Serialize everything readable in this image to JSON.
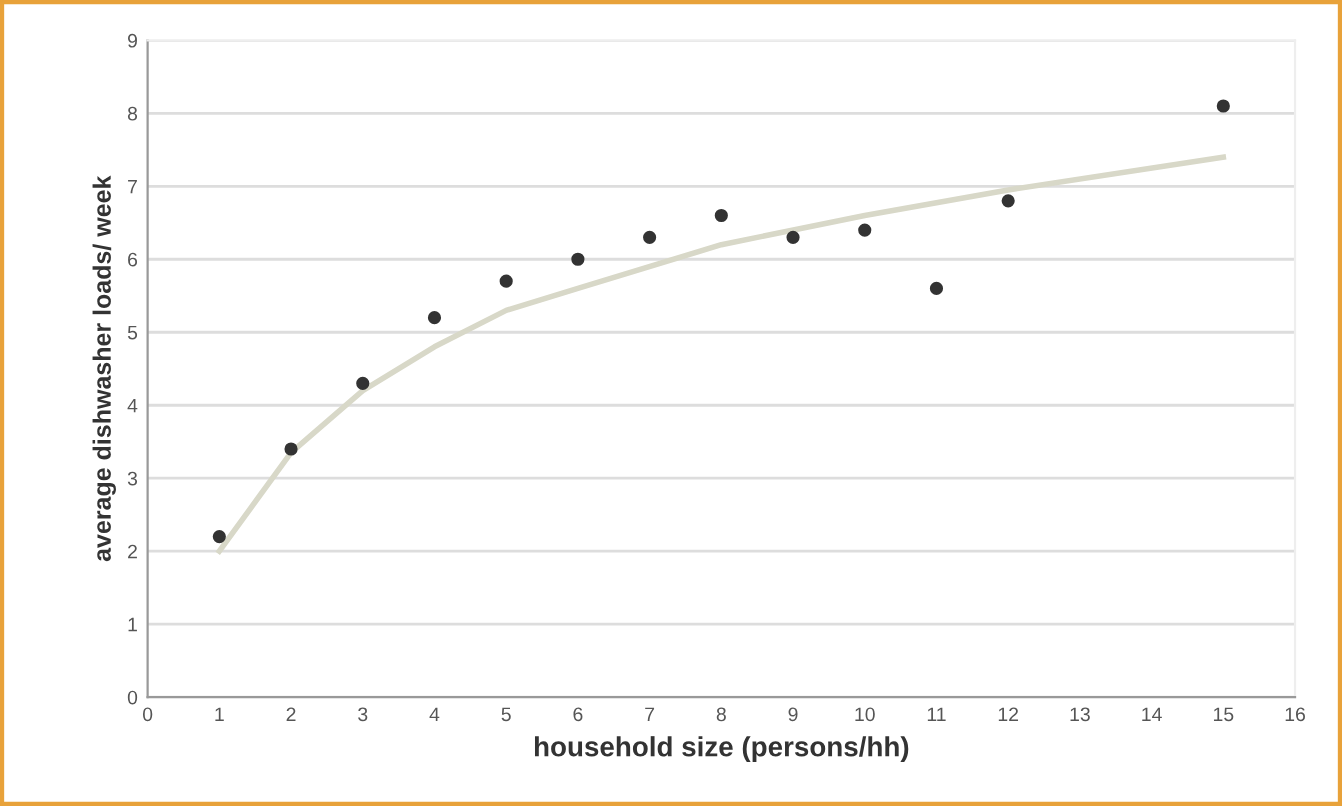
{
  "chart_data": {
    "type": "scatter",
    "xlabel": "household size (persons/hh)",
    "ylabel": "average dishwasher loads/ week",
    "xlim": [
      0,
      16
    ],
    "xticks": [
      0,
      1,
      2,
      3,
      4,
      5,
      6,
      7,
      8,
      9,
      10,
      11,
      12,
      13,
      14,
      15,
      16
    ],
    "ylim": [
      0,
      9
    ],
    "yticks": [
      0,
      1,
      2,
      3,
      4,
      5,
      6,
      7,
      8,
      9
    ],
    "grid": "y",
    "marker": "circle",
    "series": [
      {
        "color": "#333333",
        "x": [
          1,
          2,
          3,
          4,
          5,
          6,
          7,
          8,
          9,
          10,
          11,
          12,
          15
        ],
        "values": [
          2.2,
          3.4,
          4.3,
          5.2,
          5.7,
          6.0,
          6.3,
          6.6,
          6.3,
          6.4,
          5.6,
          6.8,
          8.1
        ]
      },
      {
        "type": "line",
        "color": "#d8d8c8",
        "line_style": "solid",
        "marker": "none",
        "x": [
          1,
          2,
          3,
          4,
          5,
          6,
          8,
          10,
          12,
          15
        ],
        "values": [
          2.0,
          3.35,
          4.2,
          4.8,
          5.3,
          5.6,
          6.2,
          6.6,
          6.95,
          7.4
        ]
      }
    ]
  }
}
